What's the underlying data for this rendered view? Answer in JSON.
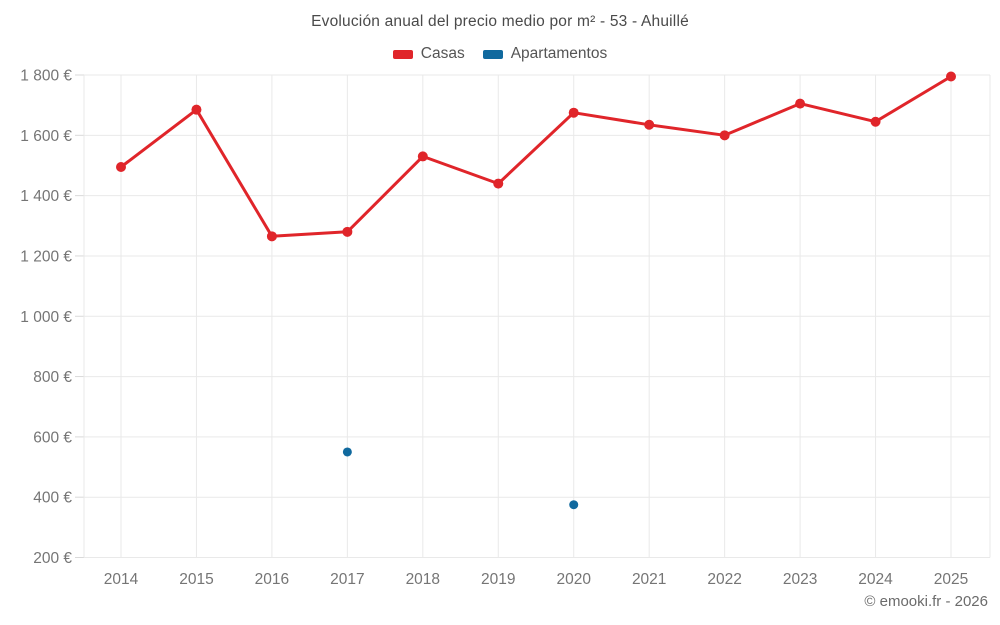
{
  "page": {
    "footer": "© emooki.fr - 2026"
  },
  "colors": {
    "casas": "#e0252a",
    "apartamentos": "#10699e",
    "grid": "#e9e9e9",
    "tick": "#d9d9d9",
    "axis_text": "#757575",
    "title_text": "#4a4a4a",
    "legend_text": "#555555",
    "background": "#ffffff"
  },
  "chart_data": {
    "type": "line",
    "title": "Evolución anual del precio medio por m² - 53 - Ahuillé",
    "categories": [
      "2014",
      "2015",
      "2016",
      "2017",
      "2018",
      "2019",
      "2020",
      "2021",
      "2022",
      "2023",
      "2024",
      "2025"
    ],
    "series": [
      {
        "name": "Casas",
        "color": "#e0252a",
        "draw_line": true,
        "marker_radius": 5,
        "values": [
          1495,
          1685,
          1265,
          1280,
          1530,
          1440,
          1675,
          1635,
          1600,
          1705,
          1645,
          1795
        ]
      },
      {
        "name": "Apartamentos",
        "color": "#10699e",
        "draw_line": false,
        "marker_radius": 4.5,
        "values": [
          null,
          null,
          null,
          550,
          null,
          null,
          375,
          null,
          null,
          null,
          null,
          null
        ]
      }
    ],
    "ylim": [
      200,
      1800
    ],
    "ytick_step": 200,
    "ytick_labels": [
      "200 €",
      "400 €",
      "600 €",
      "800 €",
      "1 000 €",
      "1 200 €",
      "1 400 €",
      "1 600 €",
      "1 800 €"
    ],
    "xlabel": "",
    "ylabel": "",
    "grid": true,
    "legend_position": "top"
  }
}
